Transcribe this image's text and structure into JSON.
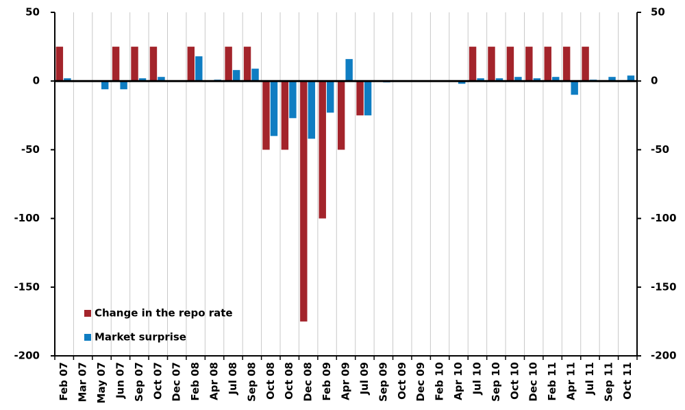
{
  "chart_data": {
    "type": "bar",
    "categories": [
      "Feb 07",
      "Mar 07",
      "May 07",
      "Jun 07",
      "Sep 07",
      "Oct 07",
      "Dec 07",
      "Feb 08",
      "Apr 08",
      "Jul 08",
      "Sep 08",
      "Oct 08",
      "Oct 08",
      "Dec 08",
      "Feb 09",
      "Apr 09",
      "Jul 09",
      "Sep 09",
      "Oct 09",
      "Dec 09",
      "Feb 10",
      "Apr 10",
      "Jul 10",
      "Sep 10",
      "Oct 10",
      "Dec 10",
      "Feb 11",
      "Apr 11",
      "Jul 11",
      "Sep 11",
      "Oct 11"
    ],
    "series": [
      {
        "name": "Change in the repo rate",
        "color": "#a3242b",
        "values": [
          25,
          0,
          0,
          25,
          25,
          25,
          0,
          25,
          0,
          25,
          25,
          -50,
          -50,
          -175,
          -100,
          -50,
          -25,
          0,
          0,
          0,
          0,
          0,
          25,
          25,
          25,
          25,
          25,
          25,
          25,
          0,
          0
        ]
      },
      {
        "name": "Market surprise",
        "color": "#0f7dc2",
        "values": [
          2,
          0,
          -6,
          -6,
          2,
          3,
          0,
          18,
          1,
          8,
          9,
          -40,
          -27,
          -42,
          -23,
          16,
          -25,
          -1,
          0,
          0,
          0,
          -2,
          2,
          2,
          3,
          2,
          3,
          -10,
          1,
          3,
          4
        ]
      }
    ],
    "ylim": [
      -200,
      50
    ],
    "yticks": [
      -200,
      -150,
      -100,
      -50,
      0,
      50
    ],
    "y2lim": [
      -200,
      50
    ],
    "y2ticks": [
      -200,
      -150,
      -100,
      -50,
      0,
      50
    ],
    "grid": "vertical",
    "legend": "lower left"
  }
}
